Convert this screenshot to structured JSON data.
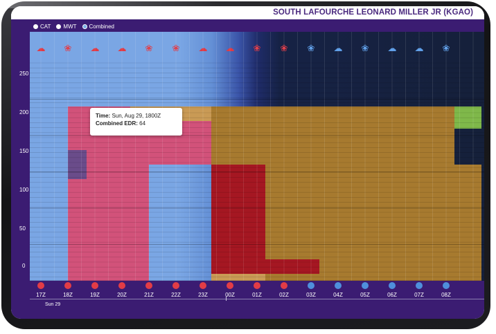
{
  "station": {
    "title": "SOUTH LAFOURCHE LEONARD MILLER JR (KGAO)"
  },
  "legend": {
    "options": [
      {
        "label": "CAT",
        "selected": false
      },
      {
        "label": "MWT",
        "selected": false
      },
      {
        "label": "Combined",
        "selected": true
      }
    ]
  },
  "colors": {
    "pink": "#d2527a",
    "tan": "#c99a55",
    "crimson": "#a51722",
    "olive": "#a77a2f",
    "lime": "#7fb84a",
    "purple": "#6a4c8a",
    "background": "#3b1c72"
  },
  "chart_data": {
    "type": "heatmap",
    "y_ticks": [
      "250",
      "200",
      "150",
      "100",
      "50",
      "0"
    ],
    "ylim": [
      0,
      300
    ],
    "x": [
      "17Z",
      "18Z",
      "19Z",
      "20Z",
      "21Z",
      "22Z",
      "23Z",
      "00Z",
      "01Z",
      "02Z",
      "03Z",
      "04Z",
      "05Z",
      "06Z",
      "07Z",
      "08Z"
    ],
    "weather_icons": [
      "storm",
      "wind",
      "storm",
      "storm",
      "wind",
      "wind",
      "storm",
      "storm",
      "wind",
      "wind",
      "wind",
      "storm",
      "wind",
      "storm",
      "storm",
      "wind"
    ],
    "icon_colors": [
      "red",
      "red",
      "red",
      "red",
      "red",
      "red",
      "red",
      "red",
      "red",
      "red",
      "blue",
      "blue",
      "blue",
      "blue",
      "blue",
      "blue"
    ],
    "day_label": "Sun 29",
    "cells": [
      {
        "x0": 1,
        "x1": 4,
        "y0": 0,
        "y1": 240,
        "level": "pink"
      },
      {
        "x0": 3.3,
        "x1": 6.3,
        "y0": 220,
        "y1": 240,
        "level": "tan"
      },
      {
        "x0": 4,
        "x1": 6.3,
        "y0": 160,
        "y1": 220,
        "level": "pink"
      },
      {
        "x0": 6.3,
        "x1": 15.3,
        "y0": 160,
        "y1": 240,
        "level": "olive"
      },
      {
        "x0": 15.3,
        "x1": 16.3,
        "y0": 210,
        "y1": 240,
        "level": "lime"
      },
      {
        "x0": 6.3,
        "x1": 8.3,
        "y0": 0,
        "y1": 160,
        "level": "crimson"
      },
      {
        "x0": 8.3,
        "x1": 16.3,
        "y0": 0,
        "y1": 160,
        "level": "olive"
      },
      {
        "x0": 8.3,
        "x1": 10.3,
        "y0": 10,
        "y1": 30,
        "level": "crimson"
      },
      {
        "x0": 6.3,
        "x1": 8.3,
        "y0": 0,
        "y1": 10,
        "level": "tan"
      },
      {
        "x0": 1,
        "x1": 1.7,
        "y0": 140,
        "y1": 180,
        "level": "purple"
      }
    ]
  },
  "tooltip": {
    "time_label": "Time:",
    "time_value": "Sun, Aug 29, 1800Z",
    "edr_label": "Combined EDR:",
    "edr_value": "64"
  }
}
